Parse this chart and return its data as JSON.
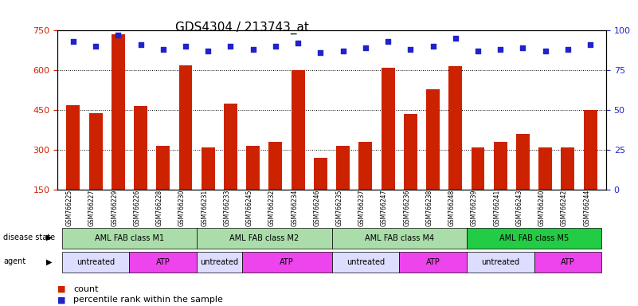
{
  "title": "GDS4304 / 213743_at",
  "samples": [
    "GSM766225",
    "GSM766227",
    "GSM766229",
    "GSM766226",
    "GSM766228",
    "GSM766230",
    "GSM766231",
    "GSM766233",
    "GSM766245",
    "GSM766232",
    "GSM766234",
    "GSM766246",
    "GSM766235",
    "GSM766237",
    "GSM766247",
    "GSM766236",
    "GSM766238",
    "GSM766248",
    "GSM766239",
    "GSM766241",
    "GSM766243",
    "GSM766240",
    "GSM766242",
    "GSM766244"
  ],
  "counts": [
    470,
    440,
    735,
    465,
    315,
    620,
    310,
    475,
    315,
    330,
    600,
    270,
    315,
    330,
    610,
    435,
    530,
    615,
    310,
    330,
    360,
    310,
    310,
    450
  ],
  "percentiles": [
    93,
    90,
    97,
    91,
    88,
    90,
    87,
    90,
    88,
    90,
    92,
    86,
    87,
    89,
    93,
    88,
    90,
    95,
    87,
    88,
    89,
    87,
    88,
    91
  ],
  "bar_color": "#cc2200",
  "dot_color": "#2222cc",
  "ylim_left": [
    150,
    750
  ],
  "ylim_right": [
    0,
    100
  ],
  "yticks_left": [
    150,
    300,
    450,
    600,
    750
  ],
  "yticks_right": [
    0,
    25,
    50,
    75,
    100
  ],
  "disease_state_groups": [
    {
      "label": "AML FAB class M1",
      "start": 0,
      "end": 6,
      "color": "#ccffcc"
    },
    {
      "label": "AML FAB class M2",
      "start": 6,
      "end": 12,
      "color": "#ccffcc"
    },
    {
      "label": "AML FAB class M4",
      "start": 12,
      "end": 18,
      "color": "#ccffcc"
    },
    {
      "label": "AML FAB class M5",
      "start": 18,
      "end": 24,
      "color": "#22cc44"
    }
  ],
  "agent_groups": [
    {
      "label": "untreated",
      "start": 0,
      "end": 3,
      "color": "#ddddff"
    },
    {
      "label": "ATP",
      "start": 3,
      "end": 6,
      "color": "#ee44ee"
    },
    {
      "label": "untreated",
      "start": 6,
      "end": 8,
      "color": "#ddddff"
    },
    {
      "label": "ATP",
      "start": 8,
      "end": 12,
      "color": "#ee44ee"
    },
    {
      "label": "untreated",
      "start": 12,
      "end": 15,
      "color": "#ddddff"
    },
    {
      "label": "ATP",
      "start": 15,
      "end": 18,
      "color": "#ee44ee"
    },
    {
      "label": "untreated",
      "start": 18,
      "end": 21,
      "color": "#ddddff"
    },
    {
      "label": "ATP",
      "start": 21,
      "end": 24,
      "color": "#ee44ee"
    }
  ],
  "legend_count_color": "#cc2200",
  "legend_dot_color": "#2222cc",
  "bg_color": "#ffffff",
  "grid_color": "#000000"
}
